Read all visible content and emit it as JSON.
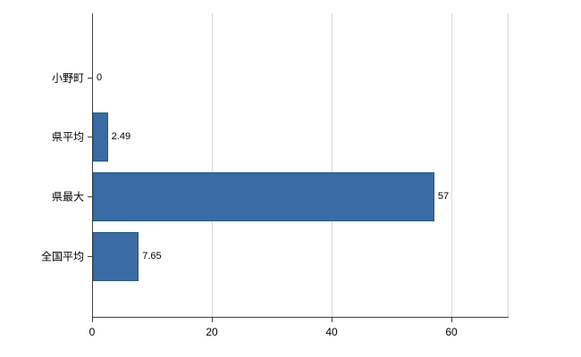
{
  "chart_data": {
    "type": "bar",
    "orientation": "horizontal",
    "title": "",
    "xlabel": "",
    "ylabel": "",
    "categories": [
      "小野町",
      "県平均",
      "県最大",
      "全国平均"
    ],
    "values": [
      0,
      2.49,
      57,
      7.65
    ],
    "value_labels": [
      "0",
      "2.49",
      "57",
      "7.65"
    ],
    "x_ticks": [
      0,
      20,
      40,
      60
    ],
    "x_tick_labels": [
      "0",
      "20",
      "40",
      "60"
    ],
    "xlim": [
      0,
      69.4
    ],
    "grid": true,
    "legend": "none",
    "bar_color": "#3A6BA5",
    "bar_border_color": "#2E5984",
    "axis_color": "#404040",
    "gridline_color": "#d9d9d9",
    "background_color": "#ffffff"
  }
}
